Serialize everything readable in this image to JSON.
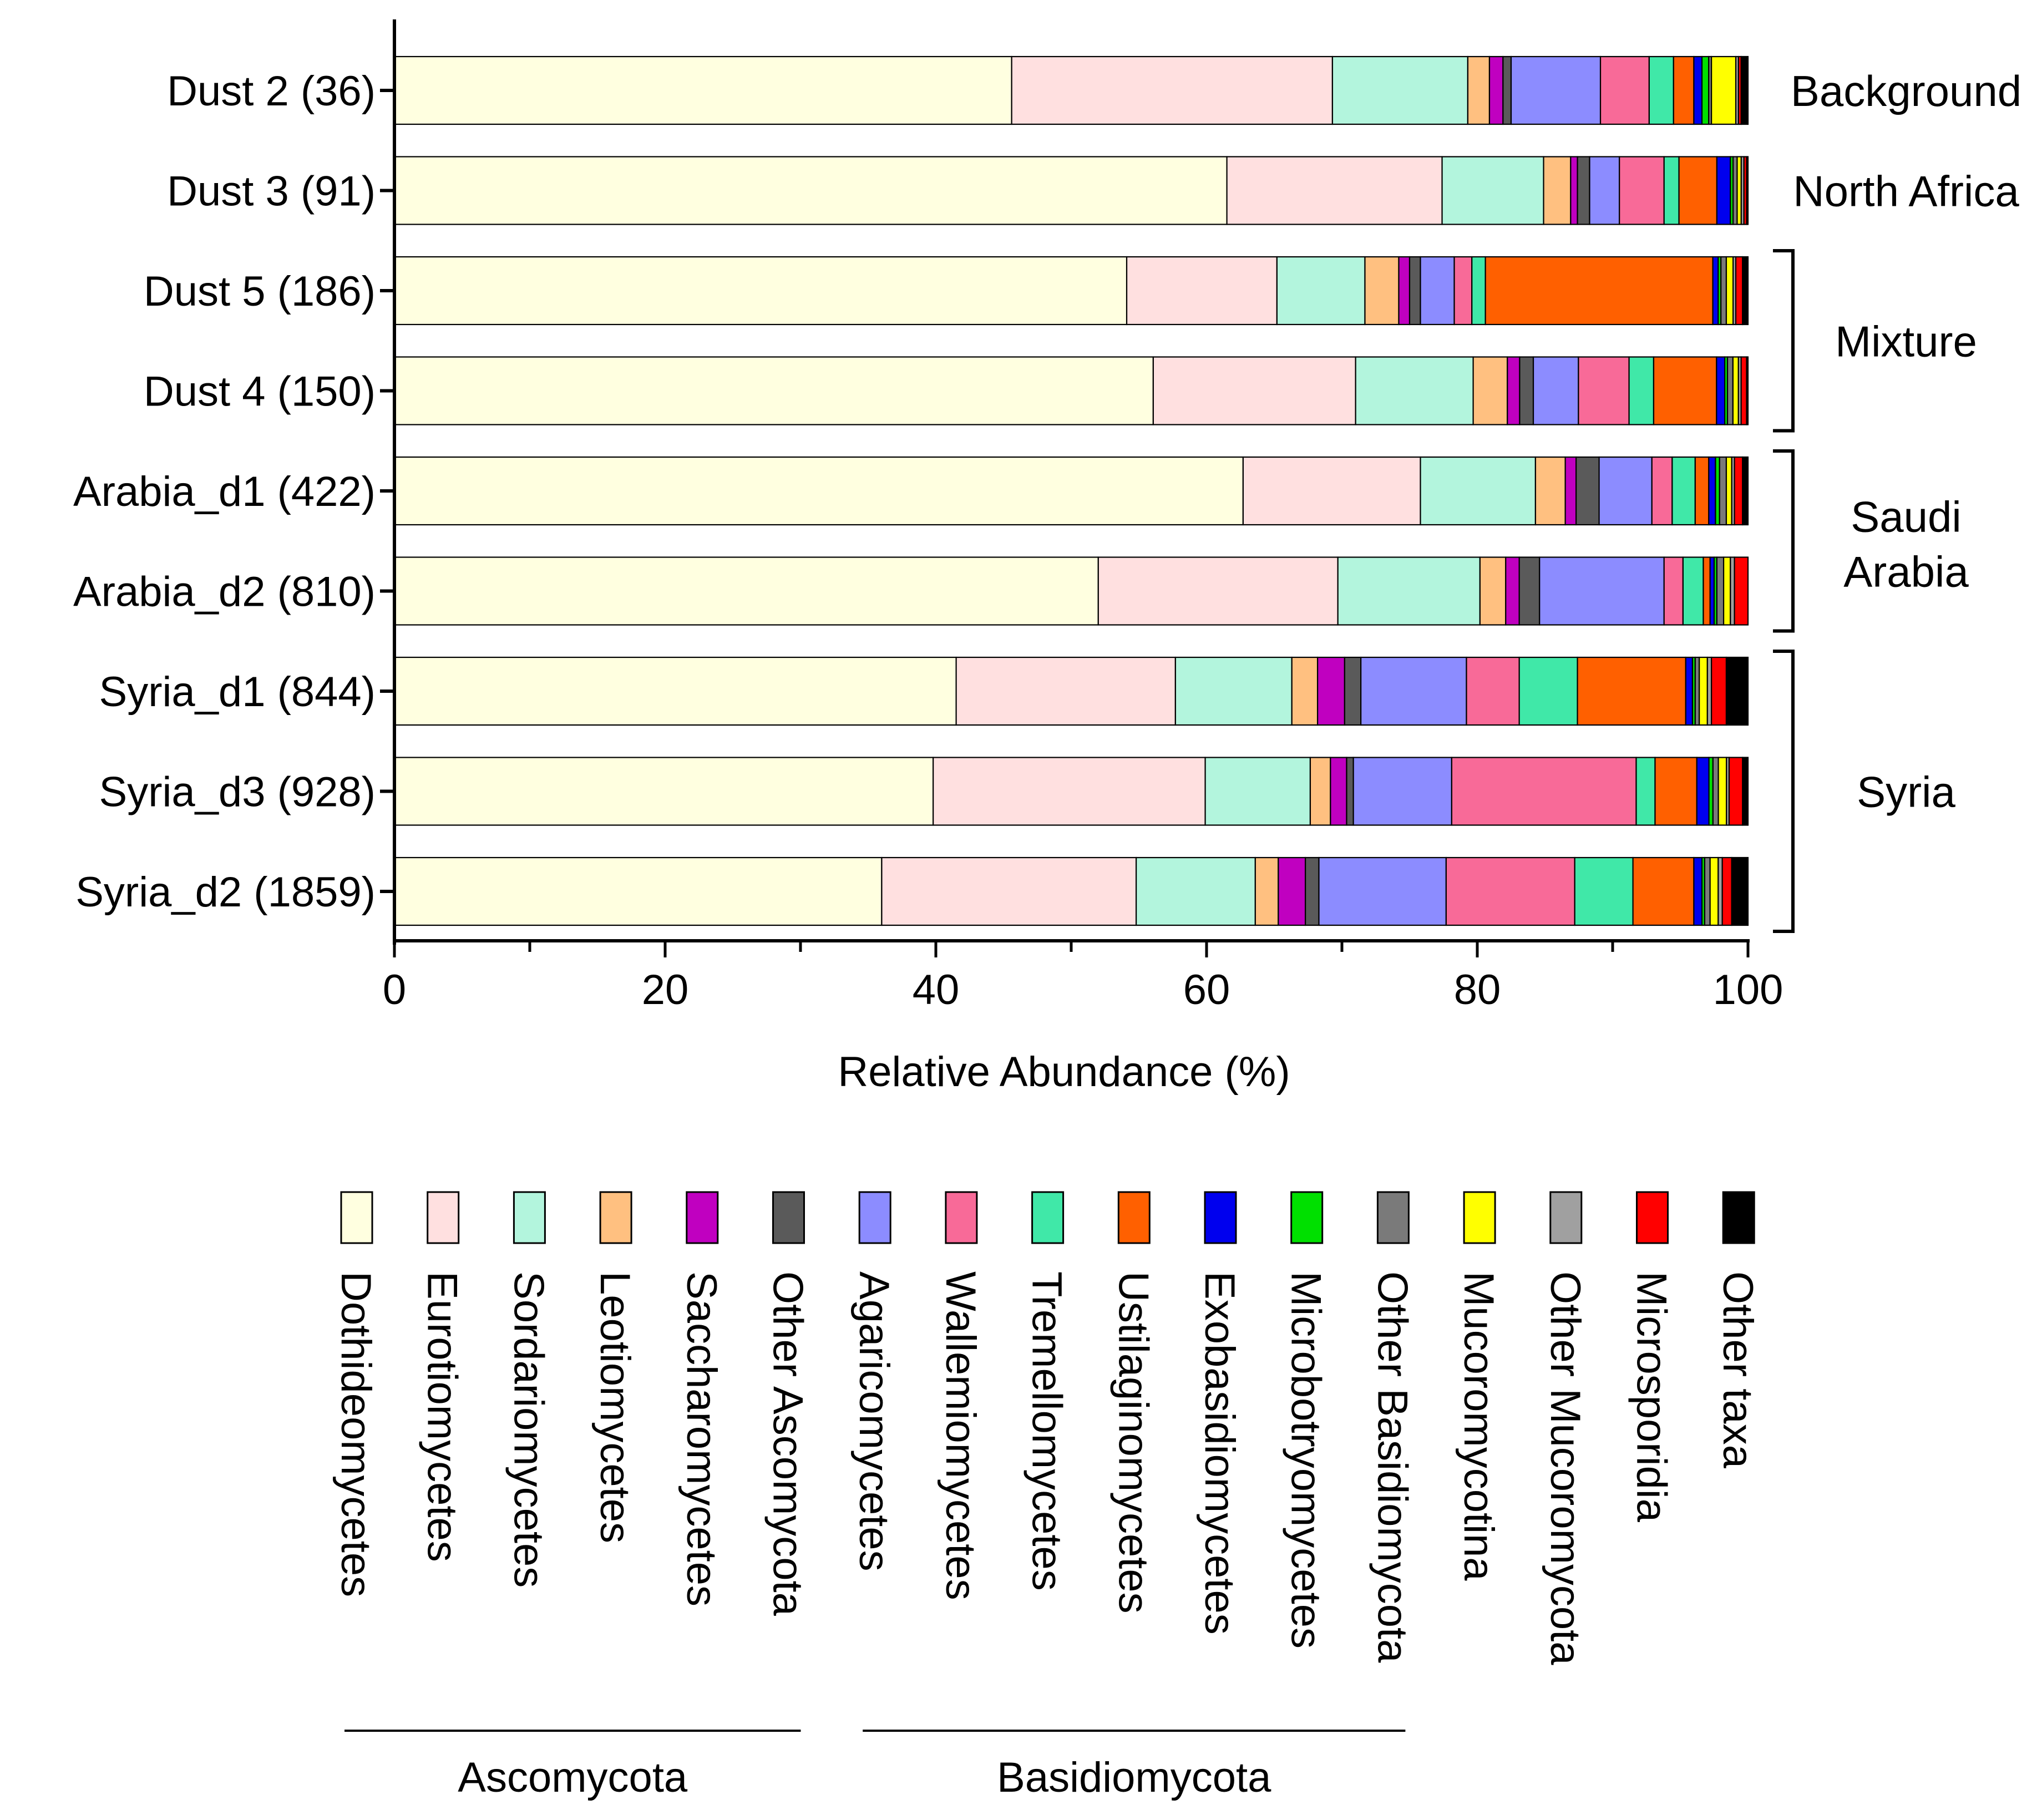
{
  "chart_data": {
    "type": "bar",
    "orientation": "horizontal",
    "stacked": true,
    "xlabel": "Relative Abundance (%)",
    "ylabel": "",
    "xlim": [
      0,
      100
    ],
    "xticks": [
      "0",
      "20",
      "40",
      "60",
      "80",
      "100"
    ],
    "categories": [
      "Dust 2 (36)",
      "Dust 3 (91)",
      "Dust 5 (186)",
      "Dust 4 (150)",
      "Arabia_d1 (422)",
      "Arabia_d2 (810)",
      "Syria_d1 (844)",
      "Syria_d3 (928)",
      "Syria_d2 (1859)"
    ],
    "series": [
      {
        "name": "Dothideomycetes",
        "color": "#FFFFE0",
        "values": [
          45.6,
          61.5,
          54.1,
          55.5,
          62.7,
          52.0,
          41.5,
          40.0,
          36.0
        ]
      },
      {
        "name": "Eurotiomycetes",
        "color": "#FFE0E0",
        "values": [
          23.7,
          15.9,
          11.1,
          14.8,
          13.1,
          17.7,
          16.2,
          20.2,
          18.8
        ]
      },
      {
        "name": "Sordariomycetes",
        "color": "#B3F5DD",
        "values": [
          10.0,
          7.5,
          6.5,
          8.6,
          8.5,
          10.5,
          8.6,
          7.8,
          8.8
        ]
      },
      {
        "name": "Leotiomycetes",
        "color": "#FFC080",
        "values": [
          1.6,
          2.0,
          2.5,
          2.5,
          2.2,
          1.9,
          1.9,
          1.5,
          1.7
        ]
      },
      {
        "name": "Saccharomycetes",
        "color": "#C000C0",
        "values": [
          1.0,
          0.5,
          0.8,
          0.9,
          0.8,
          1.0,
          2.0,
          1.2,
          2.0
        ]
      },
      {
        "name": "Other Ascomycota",
        "color": "#5A5A5A",
        "values": [
          0.6,
          0.9,
          0.8,
          1.0,
          1.7,
          1.5,
          1.2,
          0.5,
          1.0
        ]
      },
      {
        "name": "Agaricomycetes",
        "color": "#8C8CFF",
        "values": [
          6.6,
          2.2,
          2.5,
          3.3,
          3.9,
          9.2,
          7.8,
          7.3,
          9.4
        ]
      },
      {
        "name": "Wallemiomycetes",
        "color": "#F86A98",
        "values": [
          3.6,
          3.3,
          1.3,
          3.7,
          1.5,
          1.4,
          3.9,
          13.7,
          9.5
        ]
      },
      {
        "name": "Tremellomycetes",
        "color": "#40E8A8",
        "values": [
          1.8,
          1.1,
          1.0,
          1.8,
          1.7,
          1.5,
          4.3,
          1.4,
          4.3
        ]
      },
      {
        "name": "Ustilaginomycetes",
        "color": "#FF6000",
        "values": [
          1.5,
          2.8,
          16.8,
          4.6,
          1.0,
          0.5,
          8.0,
          3.1,
          4.5
        ]
      },
      {
        "name": "Exobasidiomycetes",
        "color": "#0000EE",
        "values": [
          0.6,
          1.0,
          0.4,
          0.6,
          0.5,
          0.3,
          0.5,
          0.9,
          0.6
        ]
      },
      {
        "name": "Microbotryomycetes",
        "color": "#00E000",
        "values": [
          0.5,
          0.2,
          0.2,
          0.2,
          0.3,
          0.2,
          0.2,
          0.3,
          0.2
        ]
      },
      {
        "name": "Other Basidiomycota",
        "color": "#7A7A7A",
        "values": [
          0.2,
          0.3,
          0.4,
          0.4,
          0.5,
          0.5,
          0.3,
          0.4,
          0.4
        ]
      },
      {
        "name": "Mucoromycotina",
        "color": "#FFFF00",
        "values": [
          1.8,
          0.3,
          0.5,
          0.4,
          0.4,
          0.5,
          0.6,
          0.6,
          0.6
        ]
      },
      {
        "name": "Other Mucoromycota",
        "color": "#A0A0A0",
        "values": [
          0.2,
          0.2,
          0.2,
          0.2,
          0.2,
          0.3,
          0.3,
          0.2,
          0.3
        ]
      },
      {
        "name": "Microsporidia",
        "color": "#FF0000",
        "values": [
          0.2,
          0.2,
          0.5,
          0.4,
          0.6,
          1.0,
          1.1,
          1.0,
          0.7
        ]
      },
      {
        "name": "Other taxa",
        "color": "#000000",
        "values": [
          0.5,
          0.1,
          0.4,
          0.1,
          0.4,
          0.0,
          1.6,
          0.4,
          1.2
        ]
      }
    ],
    "groups": [
      {
        "label": "Background",
        "rows": [
          0,
          0
        ],
        "bracket": false
      },
      {
        "label": "North Africa",
        "rows": [
          1,
          1
        ],
        "bracket": false
      },
      {
        "label": "Mixture",
        "rows": [
          2,
          3
        ],
        "bracket": true
      },
      {
        "label": "Saudi Arabia",
        "rows": [
          4,
          5
        ],
        "bracket": true
      },
      {
        "label": "Syria",
        "rows": [
          6,
          8
        ],
        "bracket": true
      }
    ],
    "legend": {
      "position": "bottom",
      "label_orientation": "vertical",
      "phylum_groups": [
        {
          "label": "Ascomycota",
          "first": 0,
          "last": 5
        },
        {
          "label": "Basidiomycota",
          "first": 6,
          "last": 12
        }
      ]
    },
    "grid": false
  }
}
